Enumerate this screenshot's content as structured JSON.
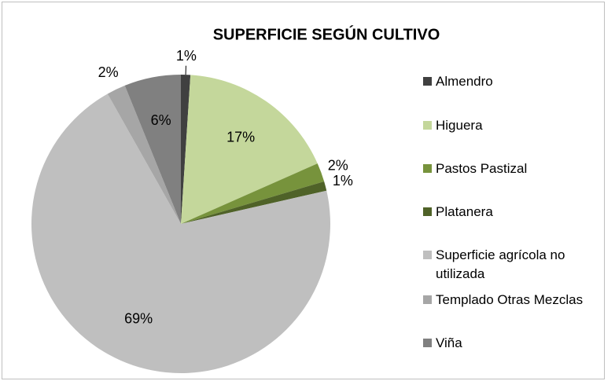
{
  "chart_data": {
    "type": "pie",
    "title": "SUPERFICIE SEGÚN CULTIVO",
    "categories": [
      "Almendro",
      "Higuera",
      "Pastos Pastizal",
      "Platanera",
      "Superficie agrícola no utilizada",
      "Templado Otras Mezclas",
      "Viña"
    ],
    "values": [
      1,
      17,
      2,
      1,
      69,
      2,
      6
    ],
    "value_labels": [
      "1%",
      "17%",
      "2%",
      "1%",
      "69%",
      "2%",
      "6%"
    ],
    "colors": [
      "#404040",
      "#c4d79b",
      "#77933c",
      "#4f6228",
      "#bfbfbf",
      "#a6a6a6",
      "#808080"
    ],
    "legend": "right"
  }
}
